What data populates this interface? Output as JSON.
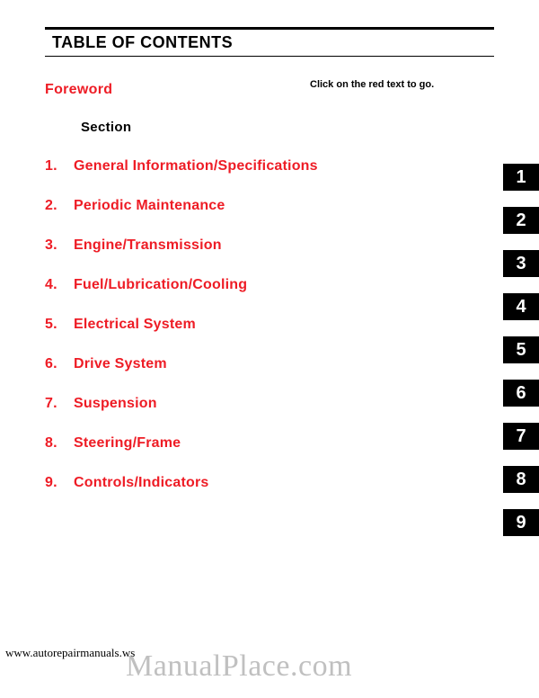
{
  "title": "TABLE OF CONTENTS",
  "hint": "Click on the red text to go.",
  "foreword": "Foreword",
  "section_label": "Section",
  "toc": [
    {
      "num": "1.",
      "title": "General Information/Specifications",
      "tab": "1"
    },
    {
      "num": "2.",
      "title": "Periodic Maintenance",
      "tab": "2"
    },
    {
      "num": "3.",
      "title": "Engine/Transmission",
      "tab": "3"
    },
    {
      "num": "4.",
      "title": "Fuel/Lubrication/Cooling",
      "tab": "4"
    },
    {
      "num": "5.",
      "title": "Electrical System",
      "tab": "5"
    },
    {
      "num": "6.",
      "title": "Drive System",
      "tab": "6"
    },
    {
      "num": "7.",
      "title": "Suspension",
      "tab": "7"
    },
    {
      "num": "8.",
      "title": "Steering/Frame",
      "tab": "8"
    },
    {
      "num": "9.",
      "title": "Controls/Indicators",
      "tab": "9"
    }
  ],
  "tab_top_start": 182,
  "tab_spacing": 48,
  "footer_url": "www.autorepairmanuals.ws",
  "watermark": "ManualPlace.com",
  "colors": {
    "link_red": "#ee1c25",
    "black": "#000000",
    "white": "#ffffff",
    "watermark_gray": "rgba(140,140,140,0.55)"
  }
}
